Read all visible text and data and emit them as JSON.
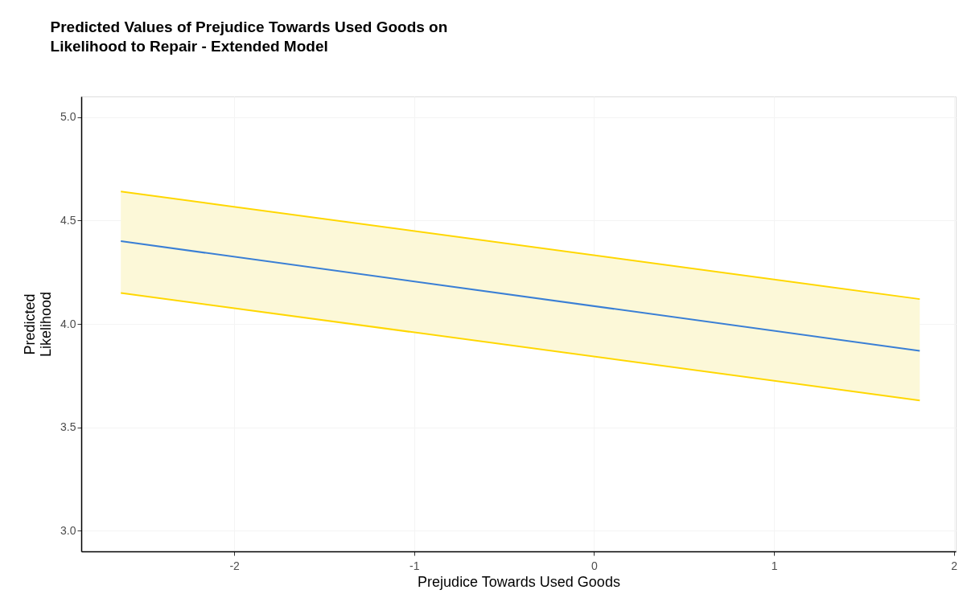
{
  "chart_data": {
    "type": "line",
    "title": "Predicted Values of Prejudice Towards Used Goods on\nLikelihood to Repair - Extended Model",
    "xlabel": "Prejudice Towards Used Goods",
    "ylabel": "Predicted\nLikelihood",
    "x": [
      -2.63,
      1.81
    ],
    "series": [
      {
        "color": "#3a7fd5",
        "values": [
          4.4,
          3.87
        ],
        "lower": [
          4.15,
          3.63
        ],
        "upper": [
          4.64,
          4.12
        ]
      },
      {
        "color": "#ffd700",
        "values": [
          4.64,
          4.12
        ]
      },
      {
        "color": "#ffd700",
        "values": [
          4.15,
          3.63
        ]
      }
    ],
    "xlim": [
      -2.85,
      2.01
    ],
    "xticks": [
      -2,
      -1,
      0,
      1,
      2
    ],
    "ylim": [
      2.9,
      5.1
    ],
    "yticks": [
      {
        "value": 3,
        "label": "3.0"
      },
      {
        "value": 3.5,
        "label": "3.5"
      },
      {
        "value": 4,
        "label": "4.0"
      },
      {
        "value": 4.5,
        "label": "4.5"
      },
      {
        "value": 5,
        "label": "5.0"
      }
    ],
    "grid": true
  }
}
